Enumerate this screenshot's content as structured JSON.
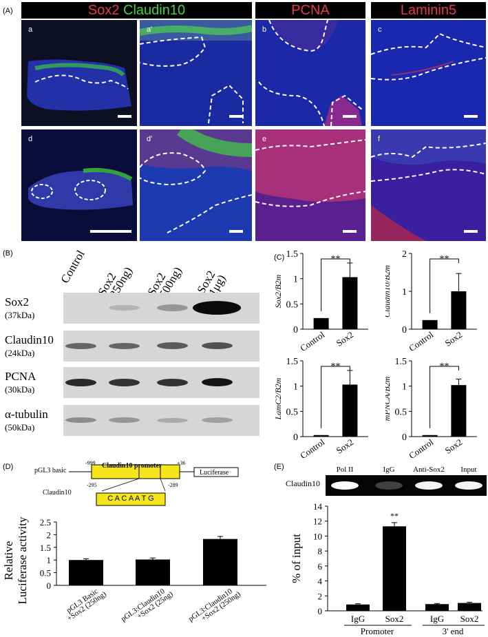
{
  "panel_labels": {
    "A": "(A)",
    "B": "(B)",
    "C": "(C)",
    "D": "(D)",
    "E": "(E)"
  },
  "panel_a": {
    "headers": [
      {
        "parts": [
          {
            "text": "Sox2",
            "color": "#e8384f"
          },
          {
            "text": " Claudin10",
            "color": "#3fd43f"
          }
        ]
      },
      {
        "parts": [
          {
            "text": "PCNA",
            "color": "#e8384f"
          }
        ]
      },
      {
        "parts": [
          {
            "text": "Laminin5",
            "color": "#e8384f"
          }
        ]
      }
    ],
    "subpanels": [
      "a",
      "a'",
      "b",
      "c",
      "d",
      "d'",
      "e",
      "f"
    ],
    "colors": {
      "dapi": "#1c2fb8",
      "red": "#e0304a",
      "green": "#35c83a",
      "header_bg": "#000000"
    }
  },
  "panel_b": {
    "lanes": [
      "Control",
      "Sox2\n(250ng)",
      "Sox2\n(500ng)",
      "Sox2\n(1μg)"
    ],
    "rows": [
      {
        "name": "Sox2",
        "kda": "(37kDa)",
        "intensity": [
          0.0,
          0.15,
          0.3,
          1.0
        ]
      },
      {
        "name": "Claudin10",
        "kda": "(24kDa)",
        "intensity": [
          0.55,
          0.55,
          0.6,
          0.65
        ]
      },
      {
        "name": "PCNA",
        "kda": "(30kDa)",
        "intensity": [
          0.85,
          0.8,
          0.8,
          0.95
        ]
      },
      {
        "name": "α-tubulin",
        "kda": "(50kDa)",
        "intensity": [
          0.35,
          0.3,
          0.2,
          0.25
        ]
      }
    ]
  },
  "panel_d_diagram": {
    "vector": "pGL3 basic",
    "promoter": "Claudin10 promoter",
    "start": "-999",
    "end": "+36",
    "reporter": "Luciferase",
    "gene_label": "Claudin10",
    "site_start": "-295",
    "site_end": "-289",
    "site_seq": "C A C A A T G"
  },
  "panel_e_gel": {
    "row_label": "Claudin10",
    "lanes": [
      "Pol II",
      "IgG",
      "Anti-Sox2",
      "Input"
    ],
    "intensity": [
      1.0,
      0.15,
      0.95,
      0.95
    ]
  },
  "chart_data": [
    {
      "type": "bar",
      "ylabel": "Sox2/B2m",
      "categories": [
        "Control",
        "Sox2"
      ],
      "values": [
        0.22,
        1.03
      ],
      "errors": [
        0,
        0.28
      ],
      "ylim": [
        0,
        1.5
      ],
      "yticks": [
        "0",
        "0.5",
        "1",
        "1.5"
      ],
      "significance": "**"
    },
    {
      "type": "bar",
      "ylabel": "Claudin10/B2m",
      "categories": [
        "Control",
        "Sox2"
      ],
      "values": [
        0.24,
        1.0
      ],
      "errors": [
        0,
        0.47
      ],
      "ylim": [
        0,
        2
      ],
      "yticks": [
        "0",
        "1",
        "2"
      ],
      "significance": "**"
    },
    {
      "type": "bar",
      "ylabel": "LamC2/B2m",
      "categories": [
        "Control",
        "Sox2"
      ],
      "values": [
        0.03,
        1.03
      ],
      "errors": [
        0,
        0.28
      ],
      "ylim": [
        0,
        1.5
      ],
      "yticks": [
        "0",
        "0.5",
        "1",
        "1.5"
      ],
      "significance": "**"
    },
    {
      "type": "bar",
      "ylabel": "mPNCA/B2m",
      "categories": [
        "Control",
        "Sox2"
      ],
      "values": [
        0.03,
        1.02
      ],
      "errors": [
        0,
        0.12
      ],
      "ylim": [
        0,
        1.5
      ],
      "yticks": [
        "0",
        "0.5",
        "1",
        "1.5"
      ],
      "significance": "**"
    },
    {
      "type": "bar",
      "ylabel": "Relative\nLuciferase activity",
      "categories": [
        "pGL3 Basic\n+Sox2 (250ng)",
        "pGL3:Claudin10\n+Sox2 (25ng)",
        "pGL3:Claudin10\n+Sox2 (250ng)"
      ],
      "values": [
        1.0,
        1.02,
        1.83
      ],
      "errors": [
        0.05,
        0.06,
        0.1
      ],
      "ylim": [
        0,
        2.5
      ],
      "yticks": [
        "0",
        "0.5",
        "1",
        "1.5",
        "2",
        "2.5"
      ]
    },
    {
      "type": "bar",
      "ylabel": "% of input",
      "categories": [
        "IgG",
        "Sox2",
        "IgG",
        "Sox2"
      ],
      "groups": [
        "Promoter",
        "3' end"
      ],
      "values": [
        0.85,
        11.3,
        0.9,
        1.05
      ],
      "errors": [
        0.1,
        0.5,
        0.08,
        0.1
      ],
      "ylim": [
        0,
        14
      ],
      "yticks": [
        "0",
        "2",
        "4",
        "6",
        "8",
        "10",
        "12",
        "14"
      ],
      "significance": [
        "",
        "**",
        "",
        ""
      ]
    }
  ]
}
